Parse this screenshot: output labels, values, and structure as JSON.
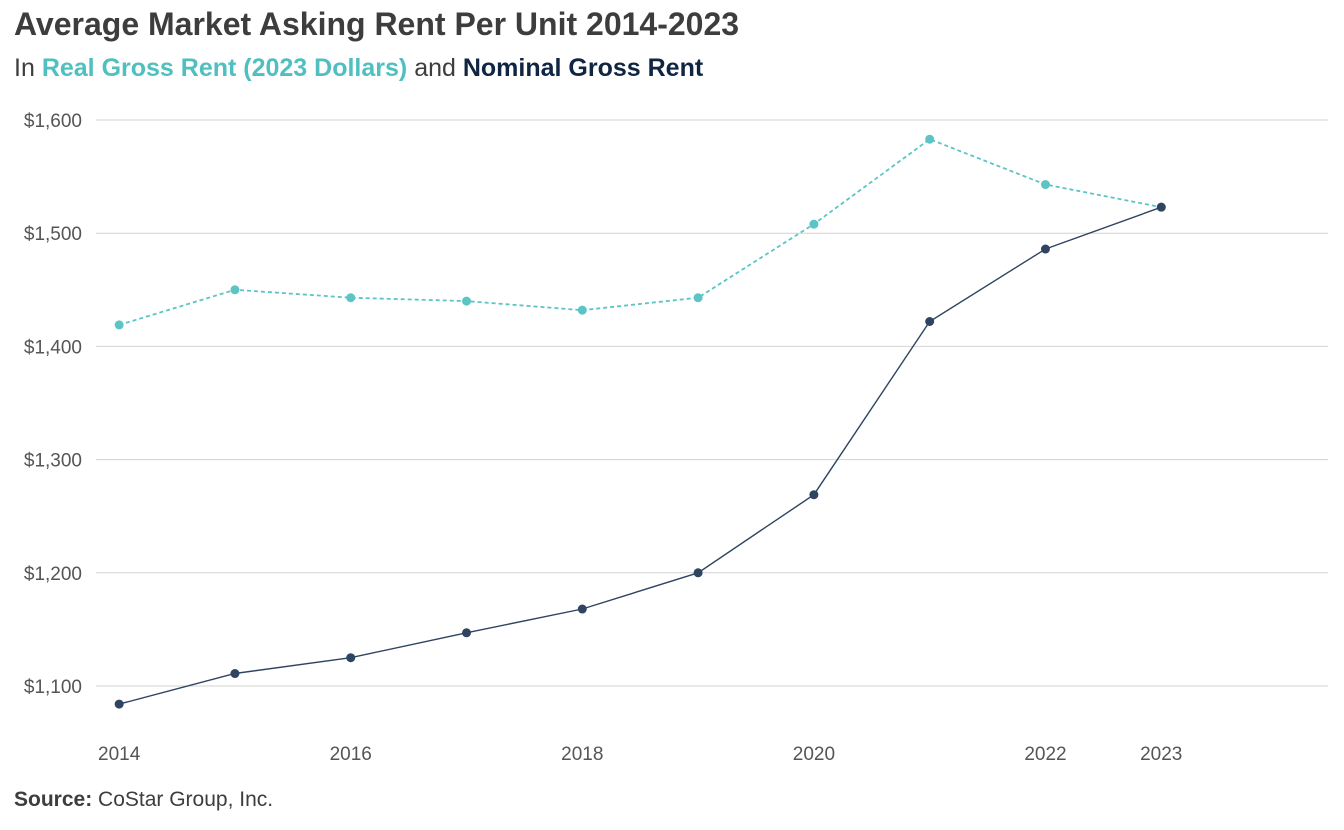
{
  "header": {
    "title": "Average Market Asking Rent Per Unit 2014-2023",
    "subtitle_prefix": "In",
    "subtitle_real": "Real Gross Rent (2023 Dollars)",
    "subtitle_and": "and",
    "subtitle_nominal": "Nominal Gross Rent"
  },
  "footer": {
    "source_label": "Source:",
    "source_text": "CoStar Group, Inc."
  },
  "chart_data": {
    "type": "line",
    "x": [
      2014,
      2015,
      2016,
      2017,
      2018,
      2019,
      2020,
      2021,
      2022,
      2023
    ],
    "x_tick_labels": [
      "2014",
      "2016",
      "2018",
      "2020",
      "2022",
      "2023"
    ],
    "x_tick_values": [
      2014,
      2016,
      2018,
      2020,
      2022,
      2023
    ],
    "y_tick_labels": [
      "$1,100",
      "$1,200",
      "$1,300",
      "$1,400",
      "$1,500",
      "$1,600"
    ],
    "y_tick_values": [
      1100,
      1200,
      1300,
      1400,
      1500,
      1600
    ],
    "ylim": [
      1070,
      1600
    ],
    "xlim": [
      2013.8,
      2024.44
    ],
    "grid": true,
    "series": [
      {
        "name": "Real Gross Rent (2023 Dollars)",
        "color": "#5cc4c4",
        "dashed": true,
        "values": [
          1419,
          1450,
          1443,
          1440,
          1432,
          1443,
          1508,
          1583,
          1543,
          1523
        ]
      },
      {
        "name": "Nominal Gross Rent",
        "color": "#2e4461",
        "dashed": false,
        "values": [
          1084,
          1111,
          1125,
          1147,
          1168,
          1200,
          1269,
          1422,
          1486,
          1523
        ]
      }
    ]
  }
}
